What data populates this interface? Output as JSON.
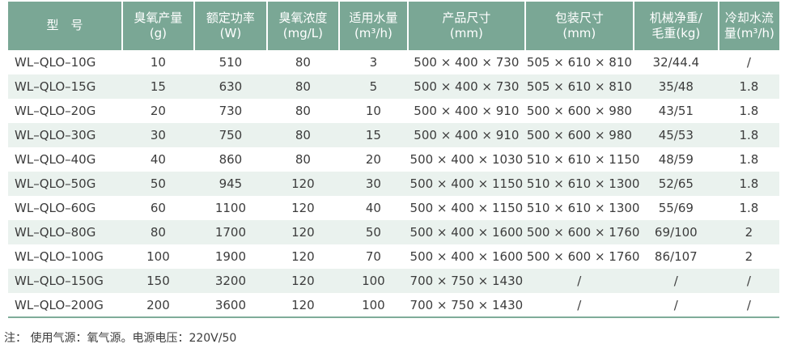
{
  "colors": {
    "header_bg": "#7aa795",
    "stripe_bg": "#eaf2ee",
    "bottom_rule": "#7fac99",
    "text": "#3c3c3c",
    "header_text": "#ffffff"
  },
  "table": {
    "headers": [
      {
        "label": "型　号"
      },
      {
        "label": "臭氧产量\n(g)"
      },
      {
        "label": "额定功率\n(W)"
      },
      {
        "label": "臭氧浓度\n(mg/L)"
      },
      {
        "label": "适用水量\n(m³/h)"
      },
      {
        "label": "产品尺寸\n(mm)"
      },
      {
        "label": "包装尺寸\n(mm)"
      },
      {
        "label": "机械净重/\n毛重(kg)"
      },
      {
        "label": "冷却水流\n量(m³/h)"
      }
    ],
    "rows": [
      [
        "WL–QLO–10G",
        "10",
        "510",
        "80",
        "3",
        "500 × 400 × 730",
        "505 × 610 × 810",
        "32/44.4",
        "/"
      ],
      [
        "WL–QLO–15G",
        "15",
        "630",
        "80",
        "5",
        "500 × 400 × 730",
        "505 × 610 × 810",
        "35/48",
        "1.8"
      ],
      [
        "WL–QLO–20G",
        "20",
        "730",
        "80",
        "10",
        "500 × 400 × 910",
        "500 × 600 × 980",
        "43/51",
        "1.8"
      ],
      [
        "WL–QLO–30G",
        "30",
        "750",
        "80",
        "15",
        "500 × 400 × 910",
        "500 × 600 × 980",
        "45/53",
        "1.8"
      ],
      [
        "WL–QLO–40G",
        "40",
        "860",
        "80",
        "20",
        "500 × 400 × 1030",
        "510 × 610 × 1150",
        "48/59",
        "1.8"
      ],
      [
        "WL–QLO–50G",
        "50",
        "945",
        "120",
        "30",
        "500 × 400 × 1150",
        "510 × 610 × 1300",
        "52/65",
        "1.8"
      ],
      [
        "WL–QLO–60G",
        "60",
        "1100",
        "120",
        "40",
        "500 × 400 × 1150",
        "510 × 610 × 1300",
        "55/69",
        "1.8"
      ],
      [
        "WL–QLO–80G",
        "80",
        "1700",
        "120",
        "50",
        "500 × 400 × 1600",
        "500 × 600 × 1760",
        "69/100",
        "2"
      ],
      [
        "WL–QLO–100G",
        "100",
        "1900",
        "120",
        "70",
        "500 × 400 × 1600",
        "500 × 600 × 1760",
        "86/107",
        "2"
      ],
      [
        "WL–QLO–150G",
        "150",
        "3200",
        "120",
        "100",
        "700 × 750 × 1430",
        "/",
        "/",
        "/"
      ],
      [
        "WL–QLO–200G",
        "200",
        "3600",
        "120",
        "100",
        "700 × 750 × 1430",
        "/",
        "/",
        "/"
      ]
    ]
  },
  "note": "注： 使用气源：氧气源。电源电压：220V/50"
}
